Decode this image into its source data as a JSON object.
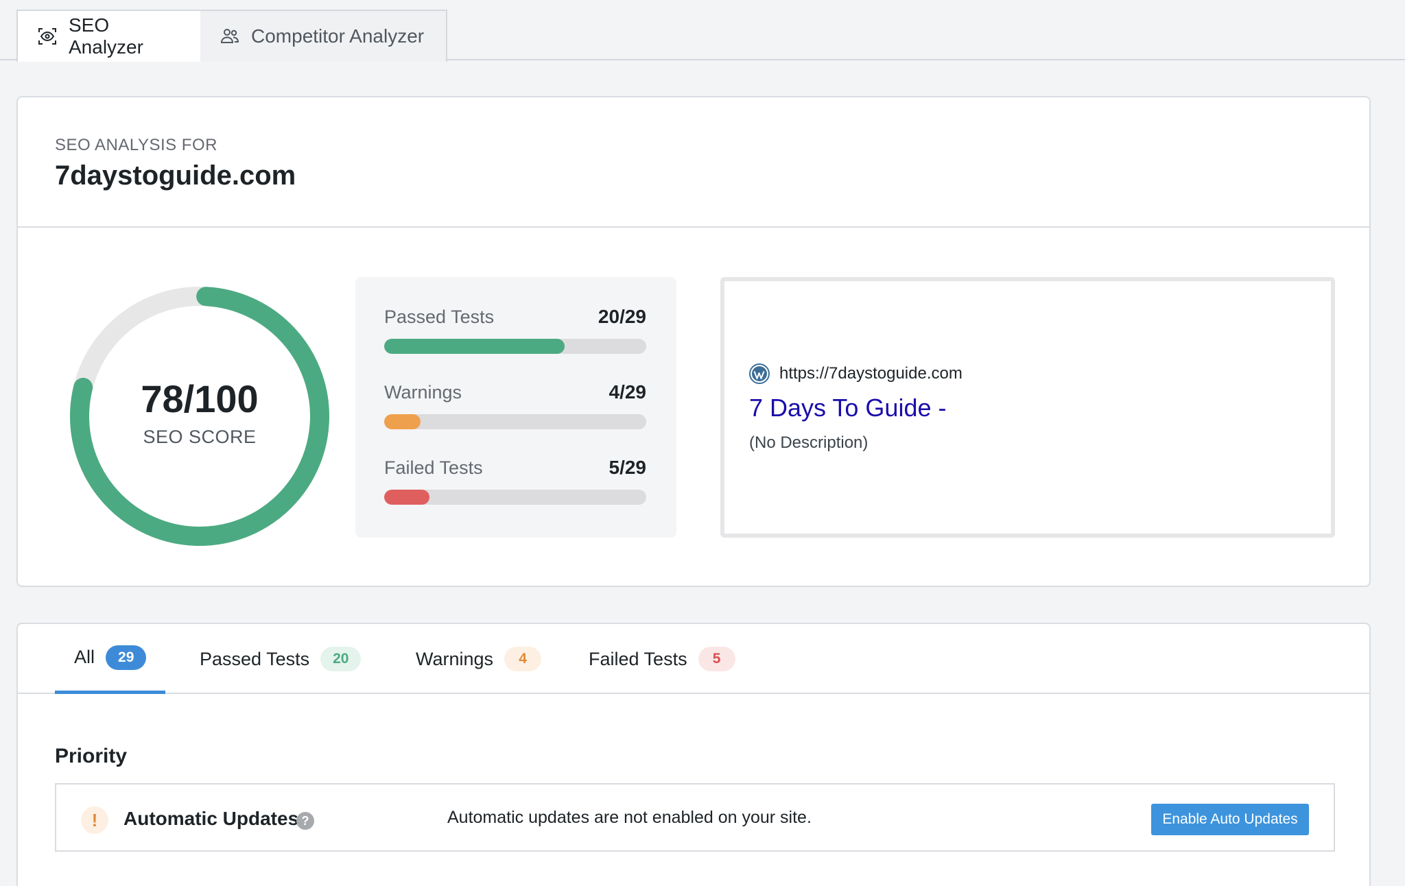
{
  "top_tabs": [
    {
      "label": "SEO Analyzer",
      "icon": "eye-scan-icon",
      "active": true
    },
    {
      "label": "Competitor Analyzer",
      "icon": "users-icon",
      "active": false
    }
  ],
  "summary": {
    "label": "SEO ANALYSIS FOR",
    "domain": "7daystoguide.com",
    "score": {
      "value": "78/100",
      "label": "SEO SCORE",
      "fraction": 0.78,
      "color": "#4caa82",
      "track_color": "#e7e7e7"
    },
    "stats": [
      {
        "name": "Passed Tests",
        "count": "20/29",
        "fraction": 0.6897,
        "color": "#4caa82"
      },
      {
        "name": "Warnings",
        "count": "4/29",
        "fraction": 0.1379,
        "color": "#efa04c"
      },
      {
        "name": "Failed Tests",
        "count": "5/29",
        "fraction": 0.1724,
        "color": "#df5f5f"
      }
    ],
    "preview": {
      "url": "https://7daystoguide.com",
      "title": "7 Days To Guide -",
      "description": "(No Description)"
    }
  },
  "filters": [
    {
      "label": "All",
      "count": "29"
    },
    {
      "label": "Passed Tests",
      "count": "20"
    },
    {
      "label": "Warnings",
      "count": "4"
    },
    {
      "label": "Failed Tests",
      "count": "5"
    }
  ],
  "priority": {
    "heading": "Priority",
    "items": [
      {
        "title": "Automatic Updates",
        "message": "Automatic updates are not enabled on your site.",
        "action": "Enable Auto Updates",
        "status_glyph": "!",
        "help_glyph": "?"
      }
    ]
  }
}
